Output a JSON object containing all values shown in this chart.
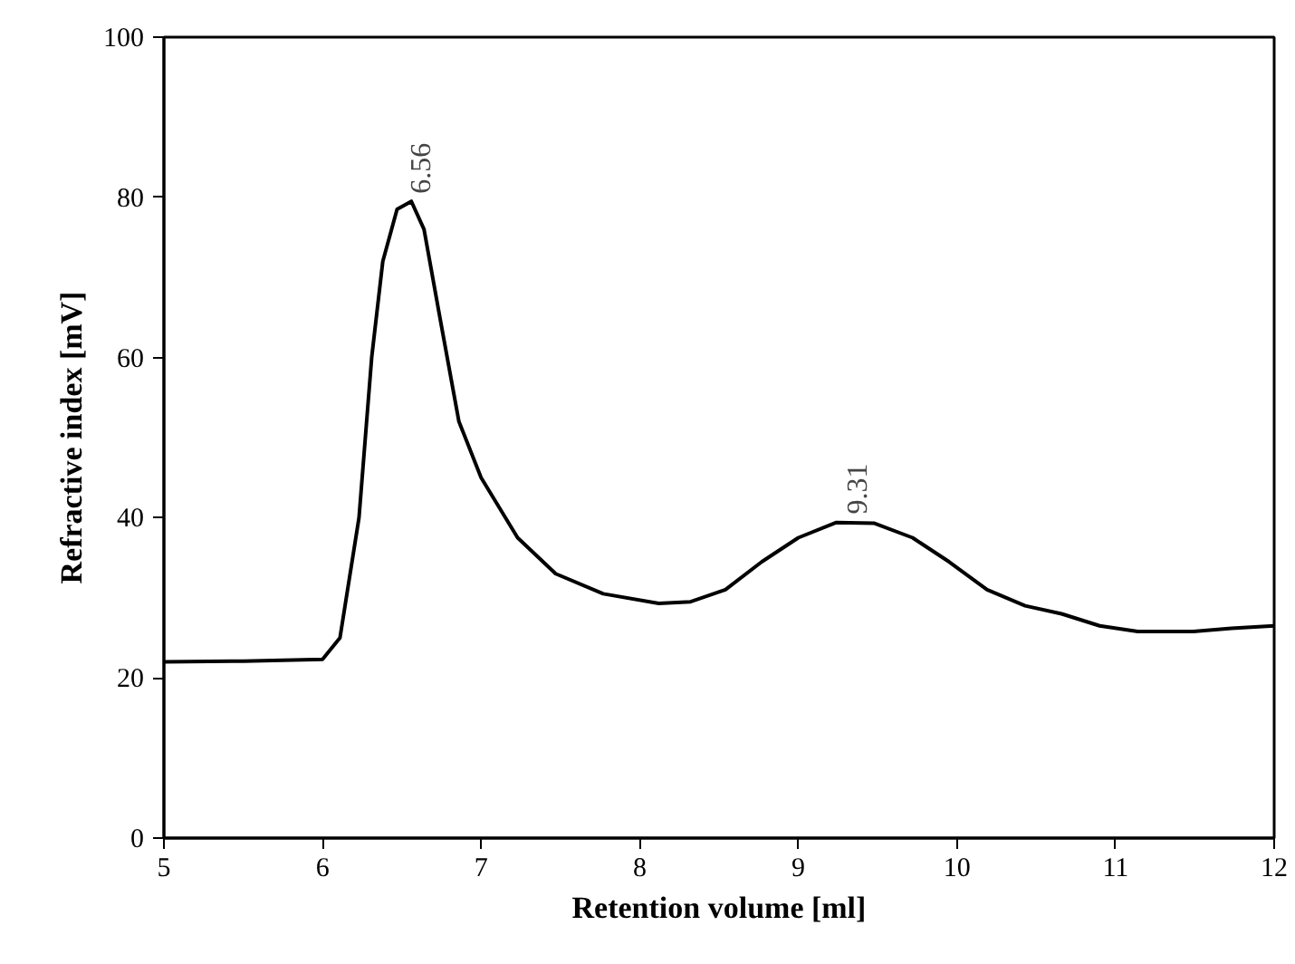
{
  "chart_data": {
    "type": "line",
    "xlabel": "Retention volume [ml]",
    "ylabel": "Refractive index [mV]",
    "x": [
      5,
      5.5,
      6.0,
      6.11,
      6.23,
      6.31,
      6.38,
      6.47,
      6.56,
      6.64,
      6.74,
      6.86,
      7.0,
      7.23,
      7.47,
      7.77,
      8.12,
      8.32,
      8.54,
      8.77,
      9.0,
      9.24,
      9.48,
      9.72,
      9.95,
      10.19,
      10.43,
      10.66,
      10.9,
      11.14,
      11.49,
      11.73,
      12
    ],
    "series": [
      {
        "color": "#000000",
        "values": [
          22,
          22.1,
          22.3,
          25,
          40,
          60,
          72,
          78.5,
          79.5,
          76,
          65,
          52,
          45,
          37.5,
          33,
          30.5,
          29.3,
          29.5,
          31,
          34.5,
          37.5,
          39.4,
          39.3,
          37.5,
          34.5,
          31,
          29,
          28,
          26.5,
          25.8,
          25.8,
          26.2,
          26.5
        ]
      }
    ],
    "xlim": [
      5,
      12
    ],
    "ylim": [
      0,
      100
    ],
    "xticks": [
      5,
      6,
      7,
      8,
      9,
      10,
      11,
      12
    ],
    "yticks": [
      0,
      20,
      40,
      60,
      80,
      100
    ],
    "grid": false,
    "line_style": "solid",
    "annotations": [
      {
        "text": "6.56",
        "x": 6.56,
        "y": 80
      },
      {
        "text": "9.31",
        "x": 9.31,
        "y": 40
      }
    ]
  }
}
